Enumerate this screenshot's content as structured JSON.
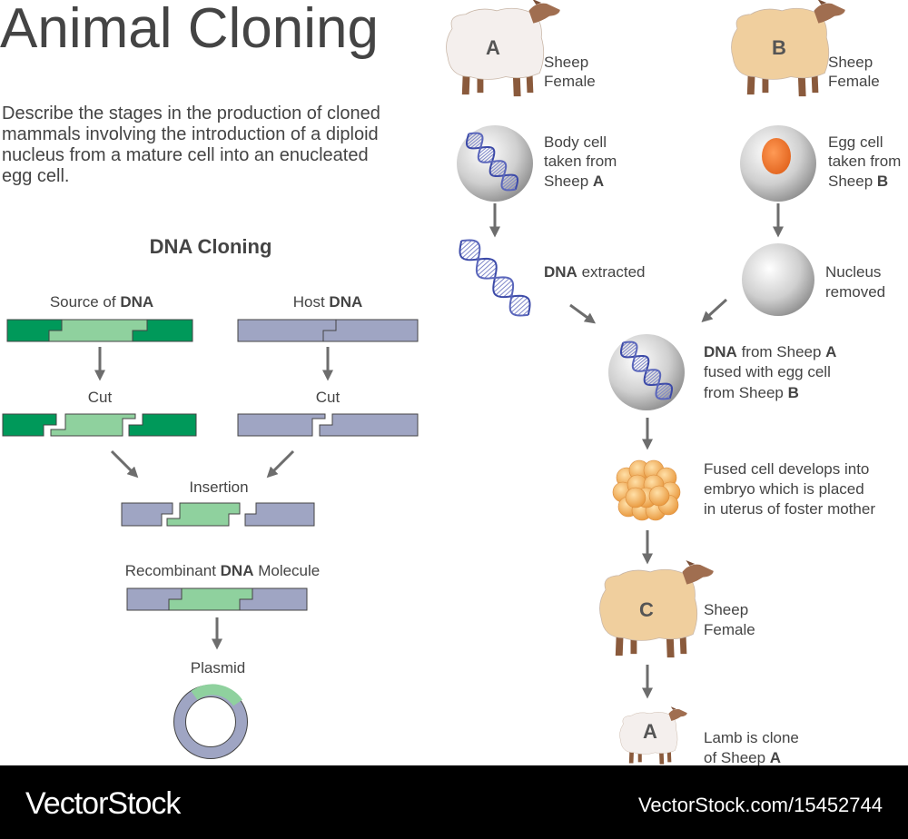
{
  "title": "Animal Cloning",
  "description": [
    "Describe the stages in the production of cloned",
    "mammals involving the introduction of a diploid",
    "nucleus from a mature cell into an enucleated",
    "egg cell."
  ],
  "dna_cloning": {
    "heading": "DNA Cloning",
    "source": {
      "pre": "Source of ",
      "bold": "DNA"
    },
    "host": {
      "pre": "Host ",
      "bold": "DNA"
    },
    "cut_left": "Cut",
    "cut_right": "Cut",
    "insertion": "Insertion",
    "recombinant": {
      "pre": "Recombinant ",
      "bold": "DNA",
      "post": " Molecule"
    },
    "plasmid": "Plasmid"
  },
  "cloning": {
    "sheep_a": {
      "letter": "A",
      "line1": "Sheep",
      "line2": "Female"
    },
    "sheep_b": {
      "letter": "B",
      "line1": "Sheep",
      "line2": "Female"
    },
    "body_cell": {
      "line1": "Body cell",
      "line2": "taken from",
      "line3_pre": "Sheep ",
      "line3_bold": "A"
    },
    "egg_cell": {
      "line1": "Egg cell",
      "line2": "taken from",
      "line3_pre": "Sheep ",
      "line3_bold": "B"
    },
    "dna_extracted": {
      "bold": "DNA",
      "post": " extracted"
    },
    "nucleus_removed": {
      "line1": "Nucleus",
      "line2": "removed"
    },
    "fused": {
      "line1_bold": "DNA",
      "line1_mid": " from Sheep ",
      "line1_bold2": "A",
      "line2": "fused with egg cell",
      "line3_pre": "from Sheep ",
      "line3_bold": "B"
    },
    "embryo": {
      "line1": "Fused cell develops into",
      "line2": "embryo which is placed",
      "line3": "in uterus of foster mother"
    },
    "sheep_c": {
      "letter": "C",
      "line1": "Sheep",
      "line2": "Female"
    },
    "lamb": {
      "letter": "A",
      "line1": "Lamb is clone",
      "line2_pre": "of Sheep ",
      "line2_bold": "A"
    }
  },
  "footer": {
    "brand": "VectorStock",
    "id": "VectorStock.com/15452744"
  },
  "colors": {
    "dark_green": "#00995a",
    "light_green": "#8fd19e",
    "host_blue": "#9fa5c3",
    "white_sheep": "#f4efed",
    "tan_sheep": "#f0cf9e",
    "egg_nucleus": "#f07b2a",
    "footer_bg": "#000000"
  }
}
